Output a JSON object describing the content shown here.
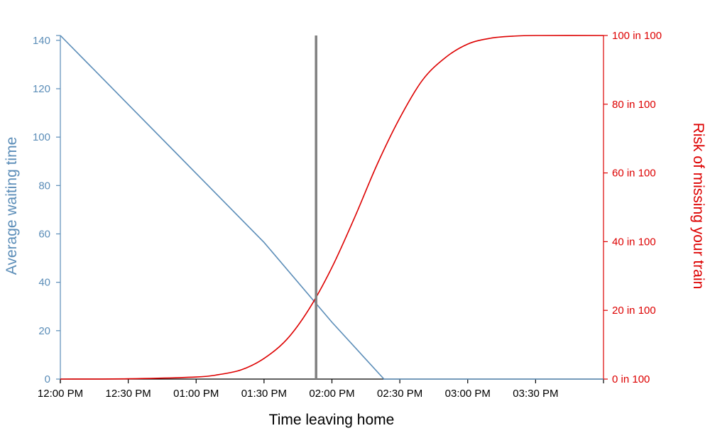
{
  "chart_data": {
    "type": "line",
    "xlabel": "Time leaving home",
    "ylabel_left": "Average waiting time",
    "ylabel_right": "Risk of missing your train",
    "x_ticks": [
      "12:00 PM",
      "12:30 PM",
      "01:00 PM",
      "01:30 PM",
      "02:00 PM",
      "02:30 PM",
      "03:00 PM",
      "03:30 PM"
    ],
    "x_range": [
      "12:00 PM",
      "04:00 PM"
    ],
    "y_left_ticks": [
      "0",
      "20",
      "40",
      "60",
      "80",
      "100",
      "120",
      "140"
    ],
    "y_left_range": [
      0,
      142
    ],
    "y_right_ticks": [
      "0 in 100",
      "20 in 100",
      "40 in 100",
      "60 in 100",
      "80 in 100",
      "100 in 100"
    ],
    "y_right_range": [
      0,
      100
    ],
    "grid": false,
    "marker_line": {
      "x": "01:53 PM"
    },
    "series": [
      {
        "axis": "left",
        "color": "#5b8db8",
        "points": [
          [
            "12:00 PM",
            142
          ],
          [
            "12:30 PM",
            113.5
          ],
          [
            "01:00 PM",
            85
          ],
          [
            "01:30 PM",
            56.5
          ],
          [
            "02:00 PM",
            23.5
          ],
          [
            "02:23 PM",
            0
          ],
          [
            "04:00 PM",
            0
          ]
        ]
      },
      {
        "axis": "right",
        "color": "#dd0000",
        "points": [
          [
            "12:00 PM",
            0
          ],
          [
            "12:30 PM",
            0.1
          ],
          [
            "01:00 PM",
            0.6
          ],
          [
            "01:10 PM",
            1.3
          ],
          [
            "01:20 PM",
            2.7
          ],
          [
            "01:30 PM",
            6
          ],
          [
            "01:40 PM",
            11.5
          ],
          [
            "01:50 PM",
            20.5
          ],
          [
            "02:00 PM",
            32.5
          ],
          [
            "02:10 PM",
            47
          ],
          [
            "02:20 PM",
            62.5
          ],
          [
            "02:30 PM",
            76
          ],
          [
            "02:40 PM",
            87
          ],
          [
            "02:50 PM",
            93.5
          ],
          [
            "03:00 PM",
            97.5
          ],
          [
            "03:10 PM",
            99.2
          ],
          [
            "03:20 PM",
            99.8
          ],
          [
            "03:30 PM",
            100
          ],
          [
            "04:00 PM",
            100
          ]
        ]
      }
    ],
    "colors": {
      "left_axis": "#5b8db8",
      "right_axis": "#dd0000",
      "x_axis": "#000000",
      "marker": "#808080"
    }
  }
}
